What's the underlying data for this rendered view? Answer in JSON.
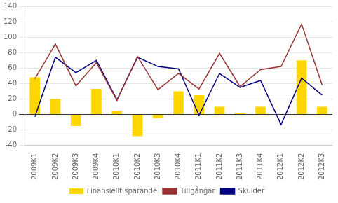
{
  "chart_data": {
    "type": "bar",
    "categories": [
      "2009K1",
      "2009K2",
      "2009K3",
      "2009K4",
      "2010K1",
      "2010K2",
      "2010K3",
      "2010K4",
      "2011K1",
      "2011K2",
      "2011K3",
      "2011K4",
      "2012K1",
      "2012K2",
      "2012K3"
    ],
    "series": [
      {
        "name": "Finansiellt sparande",
        "type": "bar",
        "color": "#FFD700",
        "values": [
          48,
          20,
          -15,
          33,
          5,
          -28,
          -5,
          30,
          25,
          10,
          2,
          10,
          0,
          70,
          10
        ]
      },
      {
        "name": "Tillgångar",
        "type": "line",
        "color": "#993333",
        "values": [
          46,
          91,
          37,
          67,
          18,
          75,
          32,
          53,
          33,
          79,
          36,
          58,
          62,
          117,
          38
        ]
      },
      {
        "name": "Skulder",
        "type": "line",
        "color": "#000080",
        "values": [
          -3,
          74,
          54,
          70,
          19,
          74,
          62,
          59,
          -1,
          53,
          35,
          44,
          -13,
          47,
          25
        ]
      }
    ],
    "ylim": [
      -40,
      140
    ],
    "yticks": [
      -40,
      -20,
      0,
      20,
      40,
      60,
      80,
      100,
      120,
      140
    ],
    "grid": "y",
    "legend": "bottom"
  }
}
